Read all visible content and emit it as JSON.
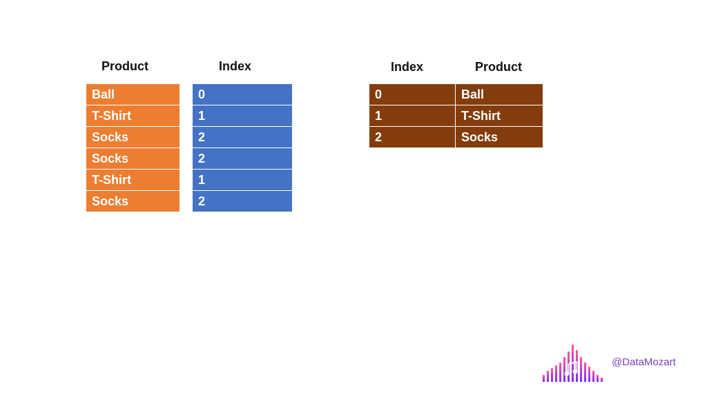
{
  "left": {
    "product_header": "Product",
    "index_header": "Index",
    "products": [
      "Ball",
      "T-Shirt",
      "Socks",
      "Socks",
      "T-Shirt",
      "Socks"
    ],
    "indexes": [
      "0",
      "1",
      "2",
      "2",
      "1",
      "2"
    ]
  },
  "right": {
    "index_header": "Index",
    "product_header": "Product",
    "rows": [
      {
        "index": "0",
        "product": "Ball"
      },
      {
        "index": "1",
        "product": "T-Shirt"
      },
      {
        "index": "2",
        "product": "Socks"
      }
    ]
  },
  "footer": {
    "handle": "@DataMozart",
    "logo_icon": "music-equalizer-icon"
  },
  "colors": {
    "orange": "#ed7d31",
    "blue": "#4472c4",
    "brown": "#843c0c"
  }
}
